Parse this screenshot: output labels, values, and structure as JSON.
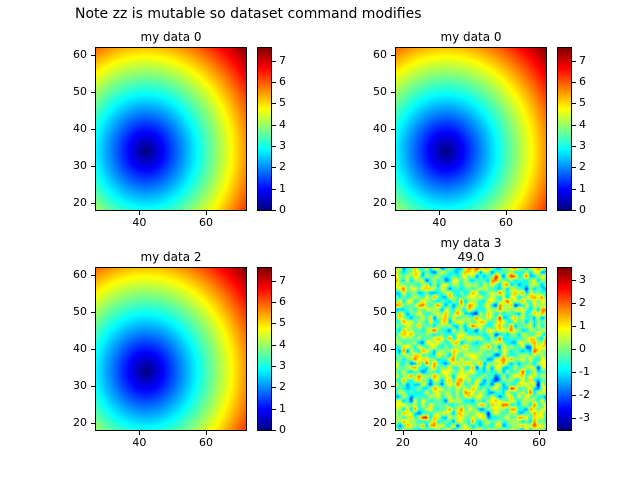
{
  "figure_title": "Note zz is mutable so dataset command modifies",
  "chart_data": [
    {
      "type": "heatmap",
      "title": "my data 0",
      "colormap": "jet",
      "pattern": "radial",
      "center": [
        42,
        34
      ],
      "value_scale": 0.185,
      "xlim": [
        27,
        72
      ],
      "ylim": [
        18,
        62
      ],
      "xticks": [
        40,
        60
      ],
      "yticks": [
        20,
        30,
        40,
        50,
        60
      ],
      "colorbar": {
        "min": 0,
        "max": 7.6,
        "ticks": [
          0,
          1,
          2,
          3,
          4,
          5,
          6,
          7
        ]
      }
    },
    {
      "type": "heatmap",
      "title": "my data 0",
      "colormap": "jet",
      "pattern": "radial",
      "center": [
        42,
        34
      ],
      "value_scale": 0.185,
      "xlim": [
        27,
        72
      ],
      "ylim": [
        18,
        62
      ],
      "xticks": [
        40,
        60
      ],
      "yticks": [
        20,
        30,
        40,
        50,
        60
      ],
      "colorbar": {
        "min": 0,
        "max": 7.6,
        "ticks": [
          0,
          1,
          2,
          3,
          4,
          5,
          6,
          7
        ]
      }
    },
    {
      "type": "heatmap",
      "title": "my data 2",
      "colormap": "jet",
      "pattern": "radial",
      "center": [
        42,
        34
      ],
      "value_scale": 0.185,
      "xlim": [
        27,
        72
      ],
      "ylim": [
        18,
        62
      ],
      "xticks": [
        40,
        60
      ],
      "yticks": [
        20,
        30,
        40,
        50,
        60
      ],
      "colorbar": {
        "min": 0,
        "max": 7.6,
        "ticks": [
          0,
          1,
          2,
          3,
          4,
          5,
          6,
          7
        ]
      }
    },
    {
      "type": "heatmap",
      "title": "my data 3",
      "subtitle": "49.0",
      "colormap": "jet",
      "pattern": "noise",
      "seed": 42,
      "std": 1.0,
      "band": 0.5,
      "grid": 40,
      "xlim": [
        18,
        62
      ],
      "ylim": [
        18,
        62
      ],
      "xticks": [
        20,
        40,
        60
      ],
      "yticks": [
        20,
        30,
        40,
        50,
        60
      ],
      "colorbar": {
        "min": -3.5,
        "max": 3.5,
        "ticks": [
          -3,
          -2,
          -1,
          0,
          1,
          2,
          3
        ]
      }
    }
  ]
}
